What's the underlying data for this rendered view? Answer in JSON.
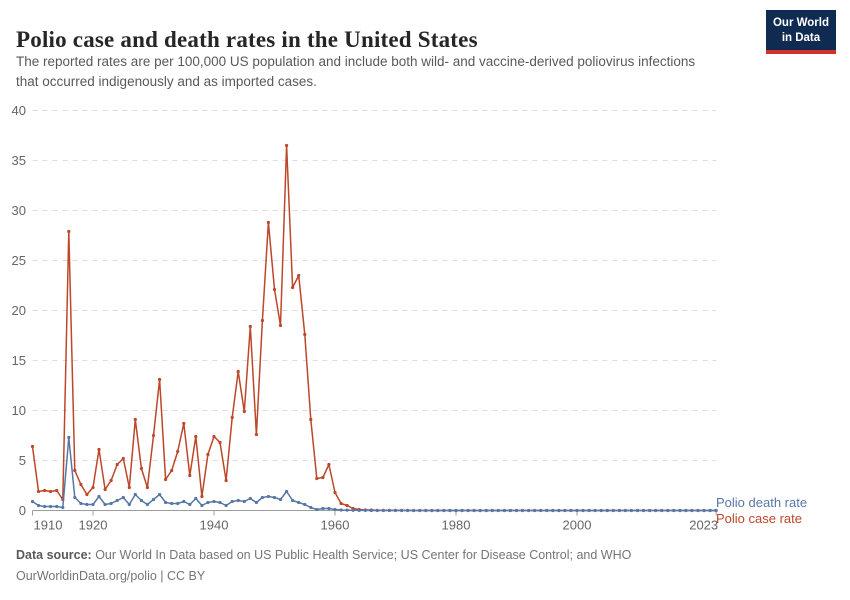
{
  "header": {
    "title": "Polio case and death rates in the United States",
    "subtitle": "The reported rates are per 100,000 US population and include both wild- and vaccine-derived poliovirus infections that occurred indigenously and as imported cases.",
    "logo": {
      "line1": "Our World",
      "line2": "in Data",
      "bg_color": "#102B52",
      "accent_color": "#CE342A"
    }
  },
  "chart_data": {
    "type": "line",
    "title": "Polio case and death rates in the United States",
    "xlabel": "",
    "ylabel": "",
    "ylim": [
      0,
      40
    ],
    "yticks": [
      0,
      5,
      10,
      15,
      20,
      25,
      30,
      35,
      40
    ],
    "xticks": [
      1910,
      1920,
      1940,
      1960,
      1980,
      2000,
      2023
    ],
    "grid": "horizontal-dashed",
    "legend_position": "right-of-line-ends",
    "marker": "dot",
    "x": [
      1910,
      1911,
      1912,
      1913,
      1914,
      1915,
      1916,
      1917,
      1918,
      1919,
      1920,
      1921,
      1922,
      1923,
      1924,
      1925,
      1926,
      1927,
      1928,
      1929,
      1930,
      1931,
      1932,
      1933,
      1934,
      1935,
      1936,
      1937,
      1938,
      1939,
      1940,
      1941,
      1942,
      1943,
      1944,
      1945,
      1946,
      1947,
      1948,
      1949,
      1950,
      1951,
      1952,
      1953,
      1954,
      1955,
      1956,
      1957,
      1958,
      1959,
      1960,
      1961,
      1962,
      1963,
      1964,
      1965,
      1966,
      1967,
      1968,
      1969,
      1970,
      1971,
      1972,
      1973,
      1974,
      1975,
      1976,
      1977,
      1978,
      1979,
      1980,
      1981,
      1982,
      1983,
      1984,
      1985,
      1986,
      1987,
      1988,
      1989,
      1990,
      1991,
      1992,
      1993,
      1994,
      1995,
      1996,
      1997,
      1998,
      1999,
      2000,
      2001,
      2002,
      2003,
      2004,
      2005,
      2006,
      2007,
      2008,
      2009,
      2010,
      2011,
      2012,
      2013,
      2014,
      2015,
      2016,
      2017,
      2018,
      2019,
      2020,
      2021,
      2022,
      2023
    ],
    "series": [
      {
        "name": "Polio case rate",
        "color": "#BC4729",
        "values": [
          6.4,
          1.9,
          2.0,
          1.9,
          2.0,
          1.1,
          27.9,
          4.0,
          2.6,
          1.6,
          2.3,
          6.1,
          2.1,
          3.0,
          4.6,
          5.2,
          2.3,
          9.1,
          4.2,
          2.3,
          7.5,
          13.1,
          3.1,
          4.0,
          5.9,
          8.7,
          3.5,
          7.4,
          1.4,
          5.6,
          7.4,
          6.8,
          3.0,
          9.3,
          13.9,
          9.9,
          18.4,
          7.6,
          19.0,
          28.8,
          22.1,
          18.5,
          36.5,
          22.3,
          23.5,
          17.6,
          9.1,
          3.2,
          3.3,
          4.6,
          1.8,
          0.7,
          0.5,
          0.2,
          0.1,
          0.05,
          0.05,
          0.02,
          0.02,
          0.01,
          0.02,
          0.01,
          0.01,
          0,
          0,
          0,
          0,
          0,
          0,
          0,
          0,
          0,
          0,
          0,
          0,
          0,
          0,
          0,
          0,
          0,
          0,
          0,
          0,
          0,
          0,
          0,
          0,
          0,
          0,
          0,
          0,
          0,
          0,
          0,
          0,
          0,
          0,
          0,
          0,
          0,
          0,
          0,
          0,
          0,
          0,
          0,
          0,
          0,
          0,
          0,
          0,
          0,
          0,
          0
        ]
      },
      {
        "name": "Polio death rate",
        "color": "#5777A7",
        "values": [
          0.9,
          0.5,
          0.4,
          0.4,
          0.4,
          0.3,
          7.3,
          1.3,
          0.7,
          0.6,
          0.6,
          1.4,
          0.6,
          0.7,
          1.0,
          1.3,
          0.6,
          1.6,
          1.0,
          0.6,
          1.1,
          1.6,
          0.8,
          0.7,
          0.7,
          0.9,
          0.6,
          1.2,
          0.5,
          0.8,
          0.9,
          0.8,
          0.5,
          0.9,
          1.0,
          0.9,
          1.2,
          0.8,
          1.3,
          1.4,
          1.3,
          1.1,
          1.9,
          1.0,
          0.8,
          0.6,
          0.3,
          0.1,
          0.2,
          0.2,
          0.1,
          0.05,
          0.04,
          0.02,
          0.01,
          0.01,
          0,
          0,
          0,
          0,
          0,
          0,
          0,
          0,
          0,
          0,
          0,
          0,
          0,
          0,
          0,
          0,
          0,
          0,
          0,
          0,
          0,
          0,
          0,
          0,
          0,
          0,
          0,
          0,
          0,
          0,
          0,
          0,
          0,
          0,
          0,
          0,
          0,
          0,
          0,
          0,
          0,
          0,
          0,
          0,
          0,
          0,
          0,
          0,
          0,
          0,
          0,
          0,
          0,
          0,
          0,
          0,
          0,
          0
        ]
      }
    ]
  },
  "legend": [
    {
      "label": "Polio death rate",
      "color": "#5777A7"
    },
    {
      "label": "Polio case rate",
      "color": "#BC4729"
    }
  ],
  "footer": {
    "source_label": "Data source:",
    "source_text": " Our World In Data based on US Public Health Service; US Center for Disease Control; and WHO",
    "citation": "OurWorldinData.org/polio | CC BY"
  },
  "style_colors": {
    "grid": "#dcdcdc",
    "axis": "#9c9c9c",
    "tick_label": "#666666"
  }
}
